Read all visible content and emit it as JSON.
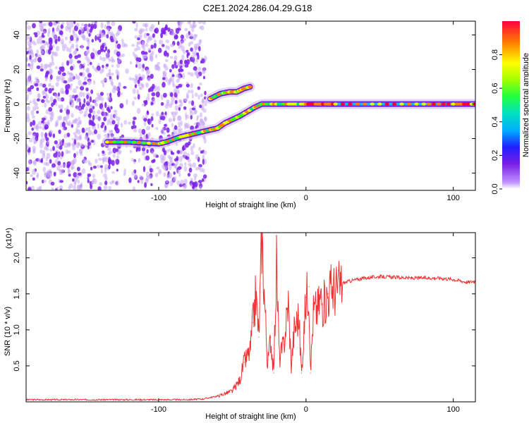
{
  "title": "C2E1.2024.286.04.29.G18",
  "chart_data": [
    {
      "type": "heatmap",
      "xlabel": "Height of straight line (km)",
      "ylabel": "Frequency (Hz)",
      "xlim": [
        -190,
        115
      ],
      "ylim": [
        -50,
        48
      ],
      "xticks": [
        -100,
        0,
        100
      ],
      "yticks": [
        -40,
        -20,
        0,
        20,
        40
      ],
      "colorbar": {
        "label": "Normalized spectral amplitude",
        "range": [
          0,
          1
        ],
        "ticks": [
          0.0,
          0.2,
          0.4,
          0.6,
          0.8
        ],
        "tick_labels": [
          "0.0",
          "0.2",
          "0.4",
          "0.6",
          "0.8"
        ]
      },
      "noise_region_x": [
        -190,
        -68
      ],
      "ridges": [
        {
          "x": [
            -135,
            -120,
            -100,
            -95,
            -85,
            -75,
            -65,
            -60,
            -55,
            -45,
            -35,
            -30,
            -20,
            -10,
            0,
            10,
            20,
            50,
            80,
            100,
            115
          ],
          "y": [
            -22,
            -22,
            -23,
            -22,
            -19,
            -17,
            -15,
            -14,
            -11,
            -7,
            -2,
            0,
            0,
            0,
            0,
            0,
            0,
            0,
            0,
            0,
            0
          ]
        },
        {
          "x": [
            -65,
            -58,
            -52,
            -47,
            -42,
            -38
          ],
          "y": [
            3,
            6,
            7,
            7,
            9,
            10
          ]
        }
      ]
    },
    {
      "type": "line",
      "xlabel": "Height of straight line (km)",
      "ylabel": "SNR (10 * v/v)",
      "y_multiplier": "(x10⁴)",
      "xlim": [
        -190,
        115
      ],
      "ylim": [
        0,
        2.35
      ],
      "xticks": [
        -100,
        0,
        100
      ],
      "yticks": [
        0.5,
        1.0,
        1.5,
        2.0
      ],
      "ytick_labels": [
        "0.5",
        "1.0",
        "1.5",
        "2.0"
      ],
      "color": "#ee3333",
      "series": [
        {
          "x": [
            -190,
            -150,
            -100,
            -80,
            -70,
            -60,
            -50,
            -45,
            -42,
            -38,
            -36,
            -34,
            -32,
            -30,
            -28,
            -26,
            -24,
            -22,
            -20,
            -18,
            -15,
            -12,
            -10,
            -8,
            -5,
            -3,
            0,
            2,
            3,
            5,
            8,
            10,
            12,
            15,
            18,
            20,
            25,
            30,
            40,
            50,
            60,
            70,
            80,
            90,
            100,
            105,
            110,
            115
          ],
          "y": [
            0.03,
            0.03,
            0.03,
            0.03,
            0.04,
            0.08,
            0.15,
            0.3,
            0.55,
            0.7,
            1.1,
            1.5,
            0.9,
            2.33,
            1.4,
            0.5,
            0.9,
            0.4,
            1.9,
            0.6,
            0.8,
            1.4,
            0.5,
            1.0,
            1.2,
            0.4,
            1.45,
            1.6,
            0.4,
            1.25,
            1.3,
            1.45,
            1.35,
            1.5,
            1.6,
            1.55,
            1.65,
            1.68,
            1.72,
            1.74,
            1.73,
            1.72,
            1.72,
            1.72,
            1.7,
            1.68,
            1.66,
            1.68
          ]
        }
      ]
    }
  ]
}
